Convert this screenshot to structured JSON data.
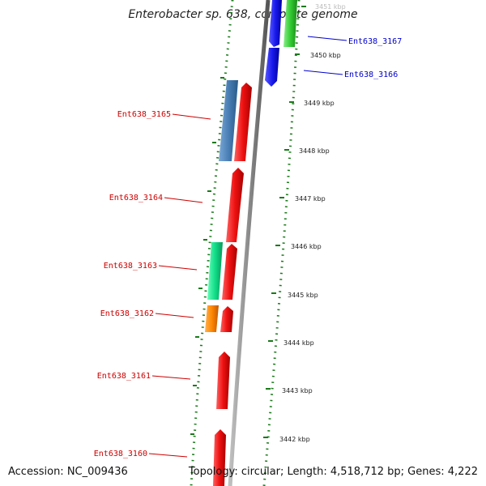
{
  "title": "Enterobacter sp. 638, complete genome",
  "accession": "Accession: NC_009436",
  "topology": "Topology: circular; Length: 4,518,712 bp; Genes: 4,222",
  "scale_labels": [
    "3451 kbp",
    "3450 kbp",
    "3449 kbp",
    "3448 kbp",
    "3447 kbp",
    "3446 kbp",
    "3445 kbp",
    "3444 kbp",
    "3443 kbp",
    "3442 kbp"
  ],
  "gene_labels": [
    {
      "name": "Ent638_3167",
      "strand": "forward"
    },
    {
      "name": "Ent638_3166",
      "strand": "forward"
    },
    {
      "name": "Ent638_3165",
      "strand": "reverse"
    },
    {
      "name": "Ent638_3164",
      "strand": "reverse"
    },
    {
      "name": "Ent638_3163",
      "strand": "reverse"
    },
    {
      "name": "Ent638_3162",
      "strand": "reverse"
    },
    {
      "name": "Ent638_3161",
      "strand": "reverse"
    },
    {
      "name": "Ent638_3160",
      "strand": "reverse"
    }
  ],
  "colors": {
    "forward_label": "#0000cc",
    "reverse_label": "#cc0000",
    "backbone": "#8a8a8a",
    "tick": "#1a7a1a",
    "cds_red": "#ee1111",
    "cds_blue": "#1a1aee",
    "cds_green": "#33cc33",
    "cds_steelblue": "#4a7fb5",
    "cds_teal": "#11dd88",
    "cds_orange": "#ff8800"
  }
}
